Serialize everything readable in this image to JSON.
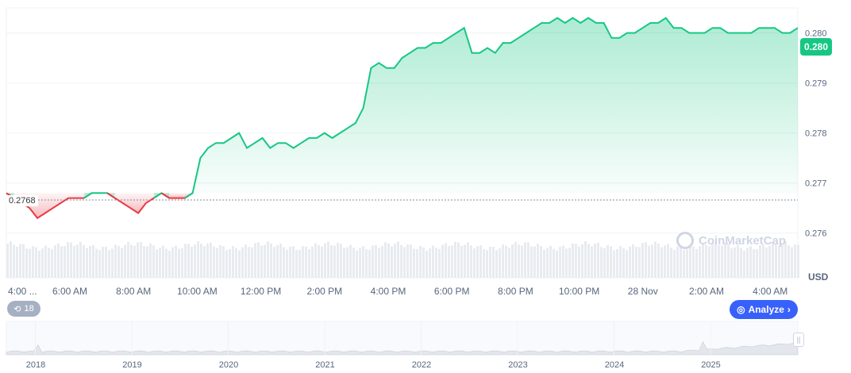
{
  "chart_data": {
    "type": "area",
    "unit": "USD",
    "baseline": 0.2768,
    "current": "0.280",
    "ylim": [
      0.2759,
      0.2805
    ],
    "yticks": [
      "0.280",
      "0.279",
      "0.278",
      "0.277",
      "0.276"
    ],
    "xticks": [
      "4:00 ...",
      "6:00 AM",
      "8:00 AM",
      "10:00 AM",
      "12:00 PM",
      "2:00 PM",
      "4:00 PM",
      "6:00 PM",
      "8:00 PM",
      "10:00 PM",
      "28 Nov",
      "2:00 AM",
      "4:00 AM"
    ],
    "series": [
      {
        "values": [
          0.2768,
          0.2767,
          0.2766,
          0.2765,
          0.2763,
          0.2764,
          0.2765,
          0.2766,
          0.2767,
          0.2767,
          0.2767,
          0.2768,
          0.2768,
          0.2768,
          0.2767,
          0.2766,
          0.2765,
          0.2764,
          0.2766,
          0.2767,
          0.2768,
          0.2767,
          0.2767,
          0.2767,
          0.2768,
          0.2775,
          0.2777,
          0.2778,
          0.2778,
          0.2779,
          0.278,
          0.2777,
          0.2778,
          0.2779,
          0.2777,
          0.2778,
          0.2778,
          0.2777,
          0.2778,
          0.2779,
          0.2779,
          0.278,
          0.2779,
          0.278,
          0.2781,
          0.2782,
          0.2785,
          0.2793,
          0.2794,
          0.2793,
          0.2793,
          0.2795,
          0.2796,
          0.2797,
          0.2797,
          0.2798,
          0.2798,
          0.2799,
          0.28,
          0.2801,
          0.2796,
          0.2796,
          0.2797,
          0.2796,
          0.2798,
          0.2798,
          0.2799,
          0.28,
          0.2801,
          0.2802,
          0.2802,
          0.2803,
          0.2802,
          0.2803,
          0.2802,
          0.2803,
          0.2802,
          0.2802,
          0.2799,
          0.2799,
          0.28,
          0.28,
          0.2801,
          0.2802,
          0.2802,
          0.2803,
          0.2801,
          0.2801,
          0.28,
          0.28,
          0.28,
          0.2801,
          0.2801,
          0.28,
          0.28,
          0.28,
          0.28,
          0.2801,
          0.2801,
          0.2801,
          0.28,
          0.28,
          0.2801
        ]
      }
    ],
    "overview_xticks": [
      "2018",
      "2019",
      "2020",
      "2021",
      "2022",
      "2023",
      "2024",
      "2025"
    ]
  },
  "ui": {
    "history_count": "18",
    "analyze_label": "Analyze",
    "watermark": "CoinMarketCap",
    "currency": "USD",
    "baseline_label": "0.2768",
    "colors": {
      "up": "#16c784",
      "down": "#ea3943",
      "accent": "#3861fb"
    }
  }
}
